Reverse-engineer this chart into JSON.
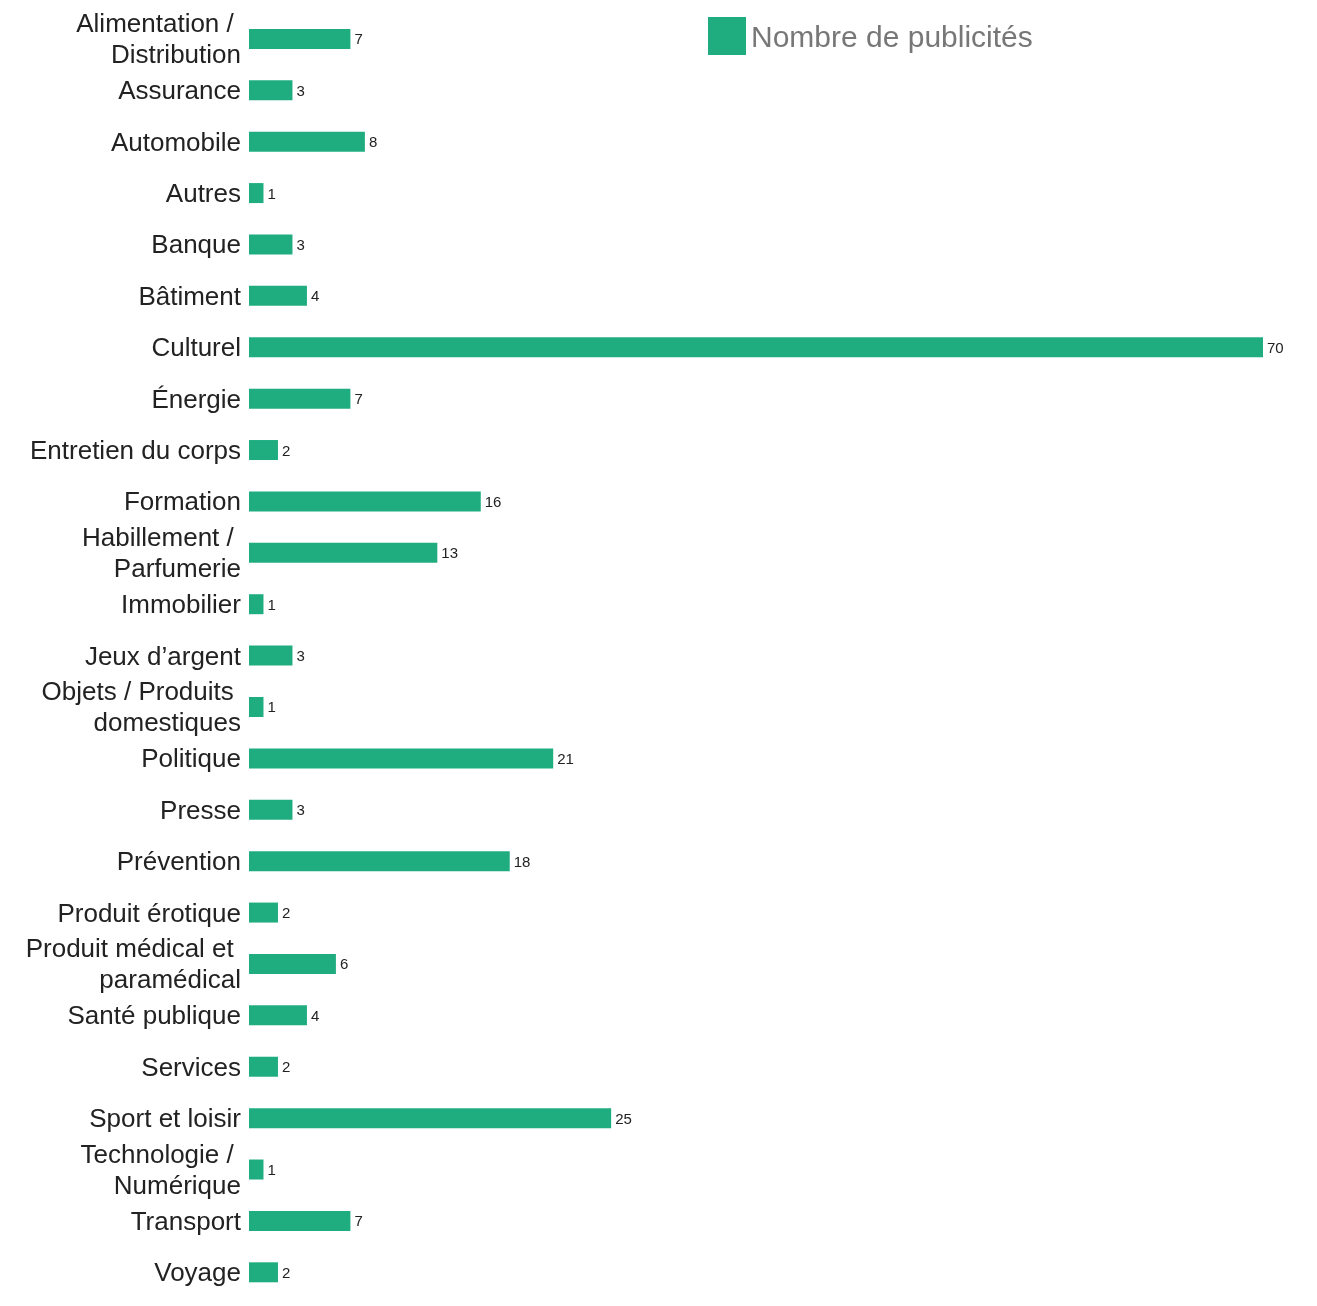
{
  "chart_data": {
    "type": "bar",
    "orientation": "horizontal",
    "categories": [
      "Alimentation / Distribution",
      "Assurance",
      "Automobile",
      "Autres",
      "Banque",
      "Bâtiment",
      "Culturel",
      "Énergie",
      "Entretien du corps",
      "Formation",
      "Habillement / Parfumerie",
      "Immobilier",
      "Jeux d’argent",
      "Objets / Produits domestiques",
      "Politique",
      "Presse",
      "Prévention",
      "Produit érotique",
      "Produit médical et paramédical",
      "Santé publique",
      "Services",
      "Sport et loisir",
      "Technologie / Numérique",
      "Transport",
      "Voyage"
    ],
    "series": [
      {
        "name": "Nombre de publicités",
        "color": "#1fad80",
        "values": [
          7,
          3,
          8,
          1,
          3,
          4,
          70,
          7,
          2,
          16,
          13,
          1,
          3,
          1,
          21,
          3,
          18,
          2,
          6,
          4,
          2,
          25,
          1,
          7,
          2
        ]
      }
    ],
    "data_labels": true,
    "legend": "top right",
    "tick_labels": "y"
  }
}
